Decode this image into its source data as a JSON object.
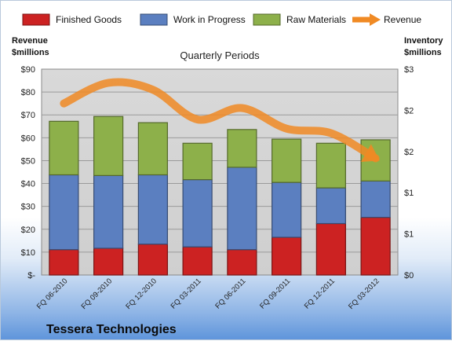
{
  "chart_data": {
    "type": "bar",
    "stacked": true,
    "title": "Quarterly Periods",
    "company": "Tessera Technologies",
    "y_left_label_line1": "Revenue",
    "y_left_label_line2": "$millions",
    "y_right_label_line1": "Inventory",
    "y_right_label_line2": "$millions",
    "categories": [
      "FQ 06-2010",
      "FQ 09-2010",
      "FQ 12-2010",
      "FQ 03-2011",
      "FQ 06-2011",
      "FQ 09-2011",
      "FQ 12-2011",
      "FQ 03-2012"
    ],
    "y_left_ticks": [
      "$-",
      "$10",
      "$20",
      "$30",
      "$40",
      "$50",
      "$60",
      "$70",
      "$80",
      "$90"
    ],
    "y_right_ticks": [
      "$0",
      "$1",
      "$1",
      "$2",
      "$2",
      "$3"
    ],
    "y_left_lim": [
      0,
      90
    ],
    "y_right_lim": [
      0,
      3
    ],
    "grid": true,
    "legend_position": "top",
    "series": [
      {
        "name": "Finished Goods",
        "axis": "right",
        "color": "#cc2222",
        "values": [
          0.37,
          0.39,
          0.45,
          0.41,
          0.37,
          0.55,
          0.75,
          0.84
        ]
      },
      {
        "name": "Work in Progress",
        "axis": "right",
        "color": "#5b7fc0",
        "values": [
          1.09,
          1.06,
          1.01,
          0.98,
          1.2,
          0.8,
          0.52,
          0.53
        ]
      },
      {
        "name": "Raw Materials",
        "axis": "right",
        "color": "#8db04a",
        "values": [
          0.78,
          0.86,
          0.76,
          0.53,
          0.55,
          0.63,
          0.65,
          0.6
        ]
      },
      {
        "name": "Revenue",
        "axis": "left",
        "type": "line",
        "color": "#f08a24",
        "values": [
          75,
          84,
          81,
          68,
          73,
          64,
          62,
          51
        ]
      }
    ]
  }
}
